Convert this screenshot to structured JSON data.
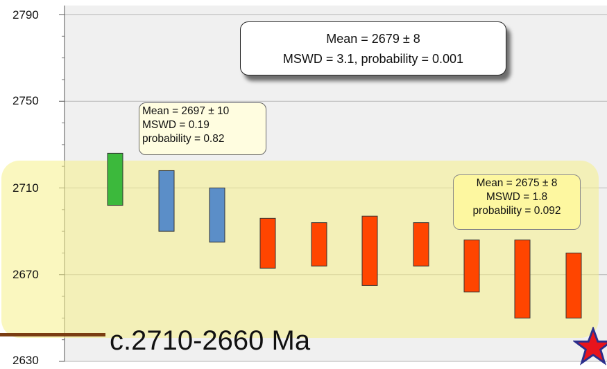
{
  "chart_data": {
    "type": "bar",
    "title": "",
    "xlabel": "",
    "ylabel": "",
    "ylim": [
      2630,
      2790
    ],
    "yticks": [
      2630,
      2670,
      2710,
      2750,
      2790
    ],
    "ytick_labels": [
      "2630",
      "2670",
      "2710",
      "2750",
      "2790"
    ],
    "grid": true,
    "series": [
      {
        "name": "",
        "color": "#3cb93c",
        "ranges": [
          [
            2702,
            2726
          ]
        ]
      },
      {
        "name": "",
        "color": "#5b8ec8",
        "ranges": [
          [
            2690,
            2718
          ],
          [
            2685,
            2710
          ]
        ]
      },
      {
        "name": "",
        "color": "#ff4500",
        "ranges": [
          [
            2673,
            2696
          ],
          [
            2674,
            2694
          ],
          [
            2665,
            2697
          ],
          [
            2674,
            2694
          ],
          [
            2662,
            2686
          ],
          [
            2650,
            2686
          ],
          [
            2650,
            2680
          ]
        ]
      }
    ],
    "annotations": [
      {
        "id": "overall",
        "lines": [
          "Mean = 2679 ± 8",
          "MSWD = 3.1, probability = 0.001"
        ]
      },
      {
        "id": "group1",
        "lines": [
          "Mean = 2697 ± 10",
          "MSWD = 0.19",
          "probability = 0.82"
        ]
      },
      {
        "id": "group3",
        "lines": [
          "Mean = 2675 ± 8",
          "MSWD = 1.8",
          "probability = 0.092"
        ]
      }
    ],
    "age_label": "c.2710-2660 Ma",
    "highlight_color": "#f5f08a"
  }
}
